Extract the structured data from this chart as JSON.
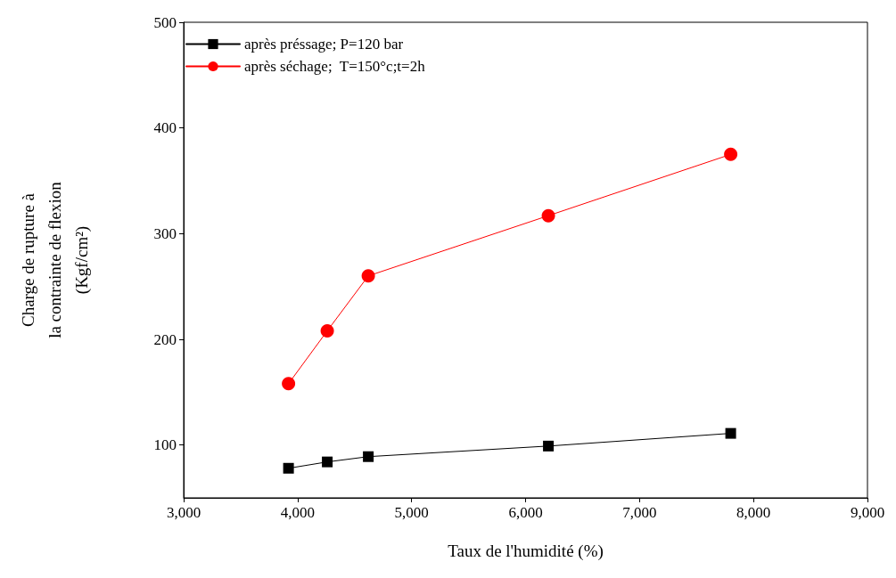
{
  "chart_data": {
    "type": "line",
    "xlabel": "Taux de l'humidité (%)",
    "ylabel": "Charge de rupture à\nla contrainte de flexion\n(Kgf/cm²)",
    "x": [
      3920,
      4260,
      4620,
      6200,
      7800
    ],
    "series": [
      {
        "name": "après préssage; P=120 bar",
        "color": "#000000",
        "marker": "square",
        "values": [
          78,
          84,
          89,
          99,
          111
        ]
      },
      {
        "name": "après séchage;  T=150°c;t=2h",
        "color": "#ff0000",
        "marker": "circle",
        "values": [
          158,
          208,
          260,
          317,
          375
        ]
      }
    ],
    "xlim": [
      3000,
      9000
    ],
    "xticks": [
      {
        "value": 3000,
        "label": "3,000"
      },
      {
        "value": 4000,
        "label": "4,000"
      },
      {
        "value": 5000,
        "label": "5,000"
      },
      {
        "value": 6000,
        "label": "6,000"
      },
      {
        "value": 7000,
        "label": "7,000"
      },
      {
        "value": 8000,
        "label": "8,000"
      },
      {
        "value": 9000,
        "label": "9,000"
      }
    ],
    "ylim": [
      50,
      500
    ],
    "yticks": [
      100,
      200,
      300,
      400,
      500
    ],
    "grid": false,
    "legend": "top left",
    "line_style": "solid"
  }
}
